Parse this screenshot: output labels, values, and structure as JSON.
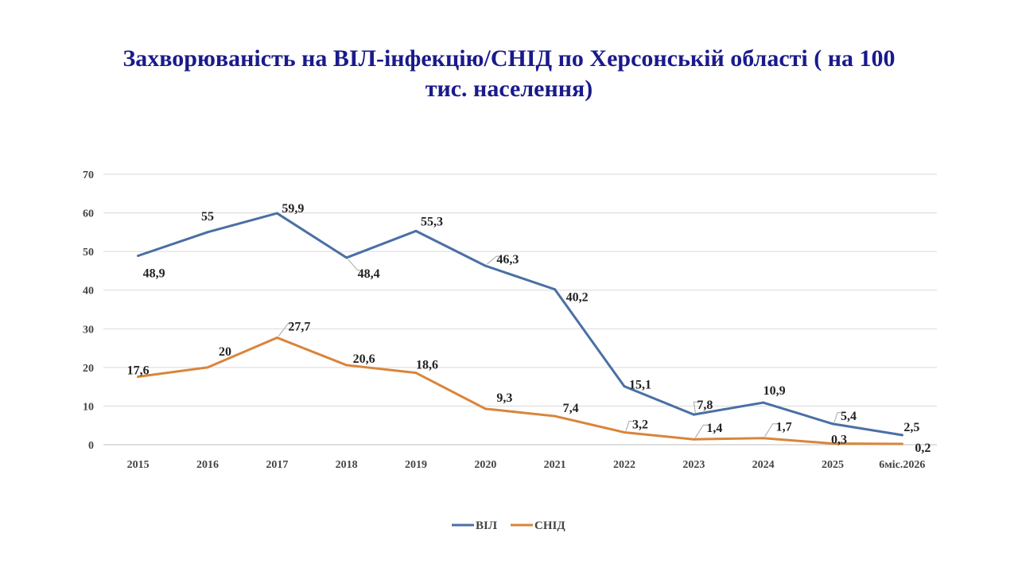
{
  "chart_data": {
    "type": "line",
    "title_line1": "Захворюваність на ВІЛ-інфекцію/СНІД по Херсонській області ( на 100",
    "title_line2": "тис. населення)",
    "categories": [
      "2015",
      "2016",
      "2017",
      "2018",
      "2019",
      "2020",
      "2021",
      "2022",
      "2023",
      "2024",
      "2025",
      "6міс.2026"
    ],
    "yticks": [
      "0",
      "10",
      "20",
      "30",
      "40",
      "50",
      "60",
      "70"
    ],
    "ylim": [
      0,
      70
    ],
    "grid": true,
    "legend_position": "bottom",
    "series": [
      {
        "name": "ВІЛ",
        "color": "#4a6fa5",
        "values": [
          48.9,
          55,
          59.9,
          48.4,
          55.3,
          46.3,
          40.2,
          15.1,
          7.8,
          10.9,
          5.4,
          2.5
        ],
        "labels": [
          "48,9",
          "55",
          "59,9",
          "48,4",
          "55,3",
          "46,3",
          "40,2",
          "15,1",
          "7,8",
          "10,9",
          "5,4",
          "2,5"
        ]
      },
      {
        "name": "СНІД",
        "color": "#d9853b",
        "values": [
          17.6,
          20,
          27.7,
          20.6,
          18.6,
          9.3,
          7.4,
          3.2,
          1.4,
          1.7,
          0.3,
          0.2
        ],
        "labels": [
          "17,6",
          "20",
          "27,7",
          "20,6",
          "18,6",
          "9,3",
          "7,4",
          "3,2",
          "1,4",
          "1,7",
          "0,3",
          "0,2"
        ]
      }
    ]
  }
}
